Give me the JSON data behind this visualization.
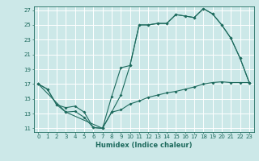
{
  "title": "",
  "xlabel": "Humidex (Indice chaleur)",
  "background_color": "#cce8e8",
  "grid_color": "#ffffff",
  "line_color": "#1e6b5e",
  "xlim": [
    -0.5,
    23.5
  ],
  "ylim": [
    10.5,
    27.5
  ],
  "xticks": [
    0,
    1,
    2,
    3,
    4,
    5,
    6,
    7,
    8,
    9,
    10,
    11,
    12,
    13,
    14,
    15,
    16,
    17,
    18,
    19,
    20,
    21,
    22,
    23
  ],
  "yticks": [
    11,
    13,
    15,
    17,
    19,
    21,
    23,
    25,
    27
  ],
  "line1_x": [
    0,
    1,
    2,
    3,
    4,
    5,
    6,
    7,
    8,
    9,
    10,
    11,
    12,
    13,
    14,
    15,
    16,
    17,
    18,
    19,
    20,
    21,
    22,
    23
  ],
  "line1_y": [
    17.0,
    16.3,
    14.2,
    13.8,
    14.0,
    13.2,
    11.1,
    11.0,
    15.3,
    19.2,
    19.5,
    25.0,
    25.0,
    25.2,
    25.2,
    26.4,
    26.2,
    26.0,
    27.2,
    26.5,
    25.0,
    23.2,
    20.5,
    17.2
  ],
  "line2_x": [
    0,
    1,
    2,
    3,
    4,
    5,
    6,
    7,
    8,
    9,
    10,
    11,
    12,
    13,
    14,
    15,
    16,
    17,
    18,
    19,
    20,
    21,
    22,
    23
  ],
  "line2_y": [
    17.0,
    16.3,
    14.2,
    13.2,
    13.3,
    12.5,
    11.1,
    11.0,
    13.2,
    13.5,
    14.3,
    14.7,
    15.2,
    15.5,
    15.8,
    16.0,
    16.3,
    16.6,
    17.0,
    17.2,
    17.3,
    17.2,
    17.2,
    17.2
  ],
  "line3_x": [
    0,
    3,
    7,
    8,
    9,
    10,
    11,
    12,
    13,
    14,
    15,
    16,
    17,
    18,
    19,
    20,
    21,
    22,
    23
  ],
  "line3_y": [
    17.0,
    13.2,
    11.0,
    13.2,
    15.5,
    19.5,
    25.0,
    25.0,
    25.2,
    25.2,
    26.4,
    26.2,
    26.0,
    27.2,
    26.5,
    25.0,
    23.2,
    20.5,
    17.2
  ],
  "xlabel_fontsize": 6,
  "tick_fontsize": 5,
  "linewidth": 0.8,
  "markersize": 2.0
}
